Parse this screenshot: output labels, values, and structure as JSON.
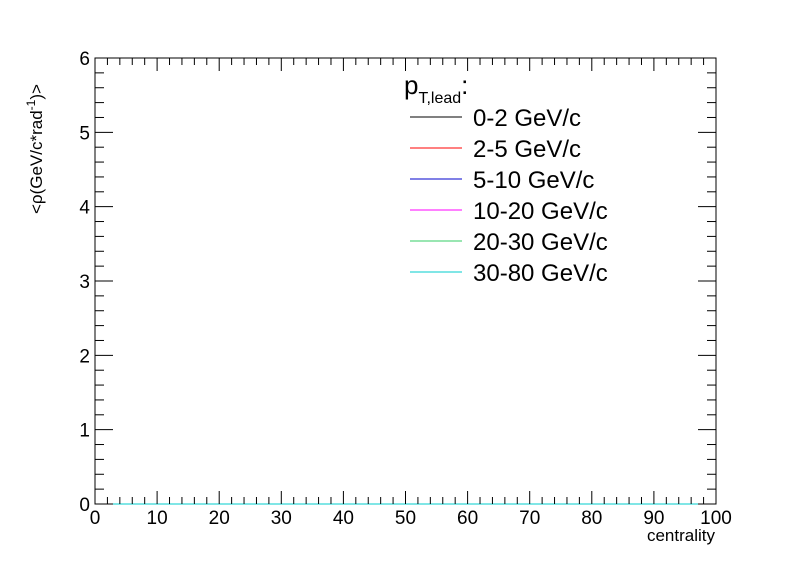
{
  "chart_data": {
    "type": "line",
    "title": "",
    "xlabel": "centrality",
    "ylabel": "<ρ(GeV/c*rad",
    "ylabel_sup": "-1",
    "ylabel_tail": ")>",
    "xlim": [
      0,
      100
    ],
    "ylim": [
      0,
      6
    ],
    "x_ticks": [
      "0",
      "10",
      "20",
      "30",
      "40",
      "50",
      "60",
      "70",
      "80",
      "90",
      "100"
    ],
    "y_ticks": [
      "0",
      "1",
      "2",
      "3",
      "4",
      "5",
      "6"
    ],
    "grid": false,
    "legend": {
      "position": "top-right",
      "header_main": "p",
      "header_sub": "T,lead",
      "header_tail": ":"
    },
    "x": [
      0,
      100
    ],
    "series": [
      {
        "name": "0-2 GeV/c",
        "color": "#000000",
        "values": [
          0,
          0
        ]
      },
      {
        "name": "2-5 GeV/c",
        "color": "#ff0000",
        "values": [
          0,
          0
        ]
      },
      {
        "name": "5-10 GeV/c",
        "color": "#0000cc",
        "values": [
          0,
          0
        ]
      },
      {
        "name": "10-20 GeV/c",
        "color": "#ff00ff",
        "values": [
          0,
          0
        ]
      },
      {
        "name": "20-30 GeV/c",
        "color": "#33cc66",
        "values": [
          0,
          0
        ]
      },
      {
        "name": "30-80 GeV/c",
        "color": "#00cccc",
        "values": [
          0,
          0
        ]
      }
    ]
  }
}
